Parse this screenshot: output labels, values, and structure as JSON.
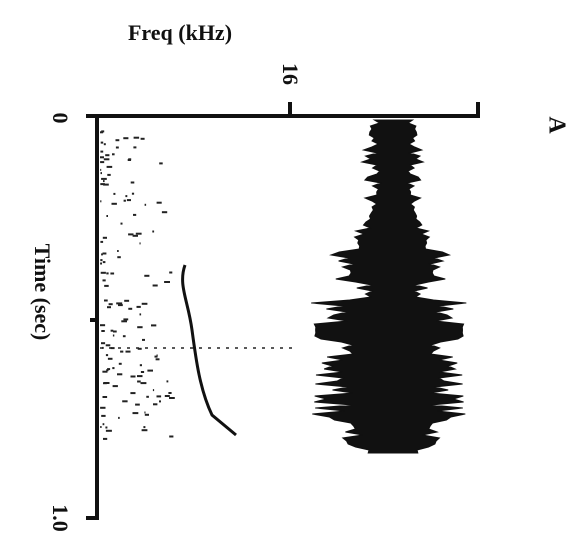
{
  "figure": {
    "panel_label": "A",
    "freq_axis": {
      "title": "Freq (kHz)",
      "tick_label": "16"
    },
    "time_axis": {
      "title": "Time (sec)",
      "start_label": "0",
      "end_label": "1.0"
    }
  }
}
